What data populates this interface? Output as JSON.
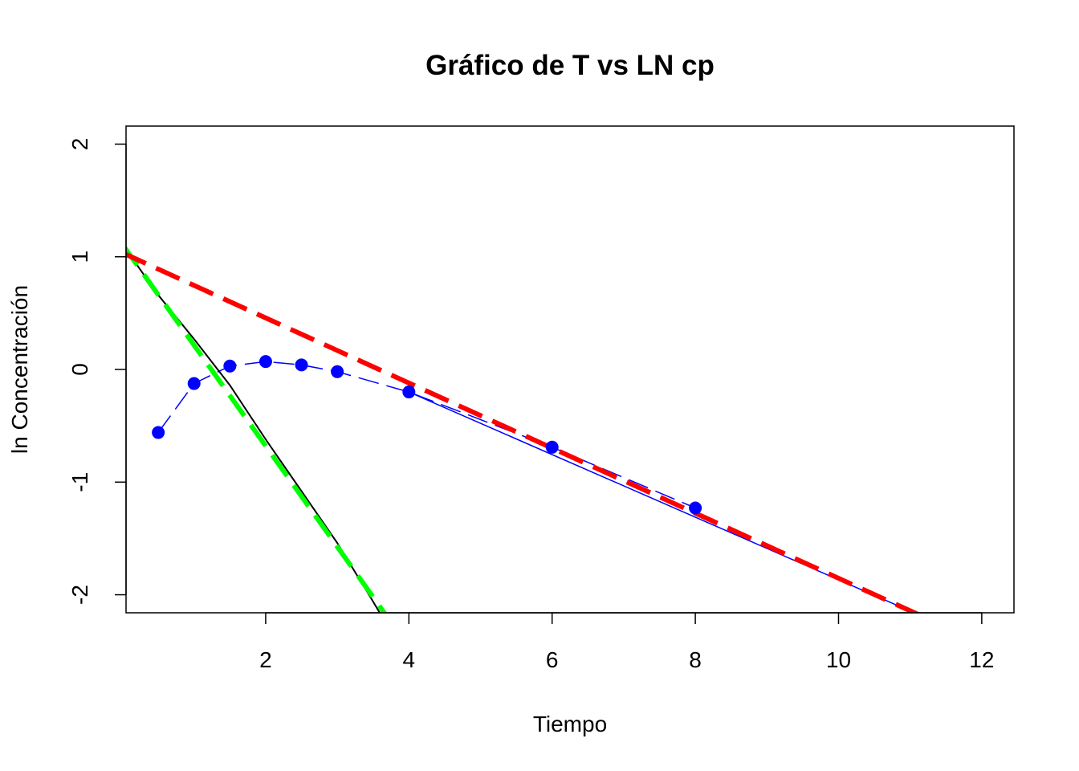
{
  "chart_data": {
    "type": "line",
    "title": "Gráfico de T vs LN cp",
    "xlabel": "Tiempo",
    "ylabel": "ln Concentración",
    "xlim": [
      0.05,
      12.45
    ],
    "ylim": [
      -2.16,
      2.16
    ],
    "x_ticks": [
      2,
      4,
      6,
      8,
      10,
      12
    ],
    "y_ticks": [
      -2,
      -1,
      0,
      1,
      2
    ],
    "grid": false,
    "series": [
      {
        "role": "observed",
        "color": "#0000ff",
        "style": "dashed-points",
        "x": [
          0.5,
          1,
          1.5,
          2,
          2.5,
          3,
          4,
          6,
          8
        ],
        "y": [
          -0.56,
          -0.125,
          0.03,
          0.07,
          0.04,
          -0.02,
          -0.2,
          -0.69,
          -1.23
        ]
      },
      {
        "role": "residual",
        "color": "#000000",
        "style": "solid",
        "x": [
          0,
          0.5,
          1,
          1.5,
          2,
          2.5,
          3,
          3.5,
          4
        ],
        "y": [
          1.11,
          0.66,
          0.27,
          -0.14,
          -0.62,
          -1.08,
          -1.54,
          -2.06,
          -2.6
        ]
      },
      {
        "role": "fit-alpha",
        "color": "#00ff00",
        "style": "dashed",
        "x": [
          0,
          3.7
        ],
        "y": [
          1.11,
          -2.2
        ]
      },
      {
        "role": "fit-beta",
        "color": "#ff0000",
        "style": "dashed",
        "x": [
          0,
          11.2
        ],
        "y": [
          1.035,
          -2.2
        ]
      },
      {
        "role": "beta-phase-line",
        "color": "#0000ff",
        "style": "solid",
        "x": [
          4,
          11.2
        ],
        "y": [
          -0.2,
          -2.2
        ]
      }
    ]
  }
}
